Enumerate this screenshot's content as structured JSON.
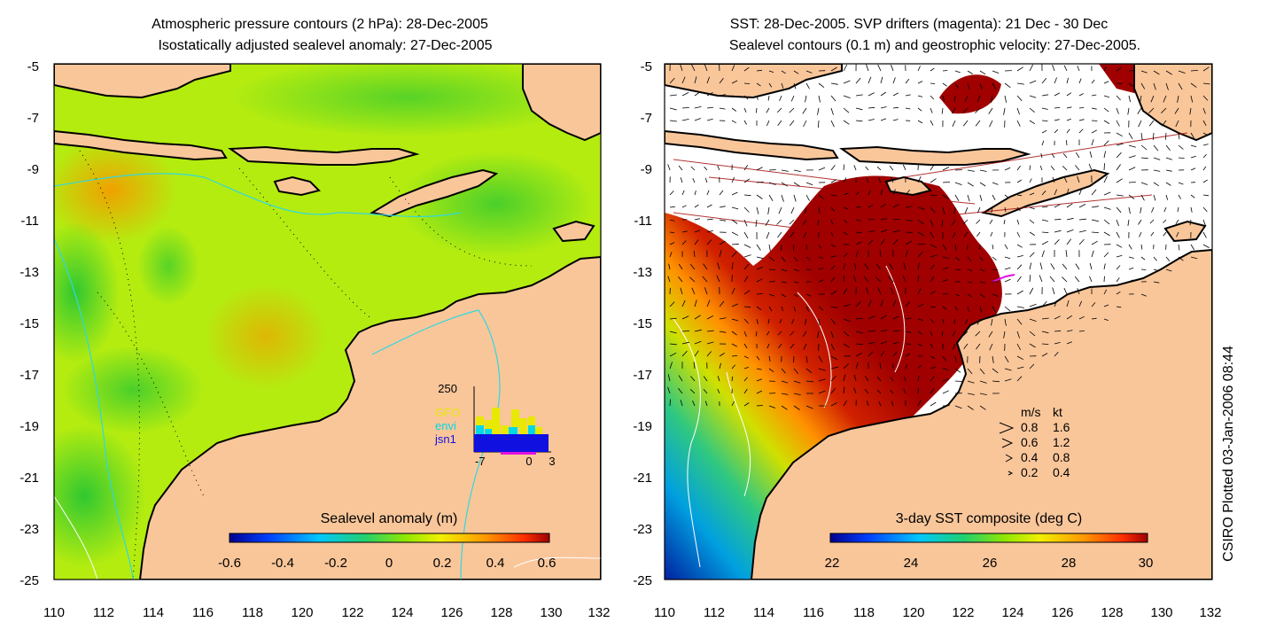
{
  "left_panel": {
    "title_line1": "Atmospheric pressure contours (2 hPa): 28-Dec-2005",
    "title_line2": "Isostatically adjusted sealevel anomaly: 27-Dec-2005",
    "colorbar_label": "Sealevel anomaly (m)",
    "colorbar_ticks": [
      "-0.6",
      "-0.4",
      "-0.2",
      "0",
      "0.2",
      "0.4",
      "0.6"
    ],
    "inset": {
      "ymax_label": "250",
      "xticks": [
        "-7",
        "0",
        "3"
      ],
      "legend": [
        {
          "label": "GFO",
          "color": "#e8e800"
        },
        {
          "label": "envi",
          "color": "#00d8e8"
        },
        {
          "label": "jsn1",
          "color": "#1010e0"
        }
      ]
    }
  },
  "right_panel": {
    "title_line1": "SST: 28-Dec-2005. SVP drifters (magenta): 21 Dec - 30 Dec",
    "title_line2": "Sealevel contours (0.1 m) and geostrophic velocity: 27-Dec-2005.",
    "colorbar_label": "3-day SST composite (deg C)",
    "colorbar_ticks": [
      "22",
      "24",
      "26",
      "28",
      "30"
    ],
    "velocity_legend": {
      "header_ms": "m/s",
      "header_kt": "kt",
      "rows": [
        {
          "ms": "0.8",
          "kt": "1.6"
        },
        {
          "ms": "0.6",
          "kt": "1.2"
        },
        {
          "ms": "0.4",
          "kt": "0.8"
        },
        {
          "ms": "0.2",
          "kt": "0.4"
        }
      ]
    }
  },
  "axes": {
    "y_ticks": [
      "-5",
      "-7",
      "-9",
      "-11",
      "-13",
      "-15",
      "-17",
      "-19",
      "-21",
      "-23",
      "-25"
    ],
    "x_ticks": [
      "110",
      "112",
      "114",
      "116",
      "118",
      "120",
      "122",
      "124",
      "126",
      "128",
      "130",
      "132"
    ]
  },
  "side_label": "CSIRO Plotted 03-Jan-2006 08:44",
  "colors": {
    "land": "#f9c69a",
    "coast": "#000000",
    "anomaly_scale": [
      "#00008f",
      "#0050ff",
      "#00c0ff",
      "#20d080",
      "#60e000",
      "#c0f000",
      "#f0e000",
      "#ffa000",
      "#ff4000",
      "#a00000"
    ],
    "sst_scale": [
      "#00008f",
      "#0050ff",
      "#00c0ff",
      "#20d080",
      "#60e000",
      "#c0f000",
      "#f0e000",
      "#ffa000",
      "#ff4000",
      "#a00000"
    ]
  }
}
